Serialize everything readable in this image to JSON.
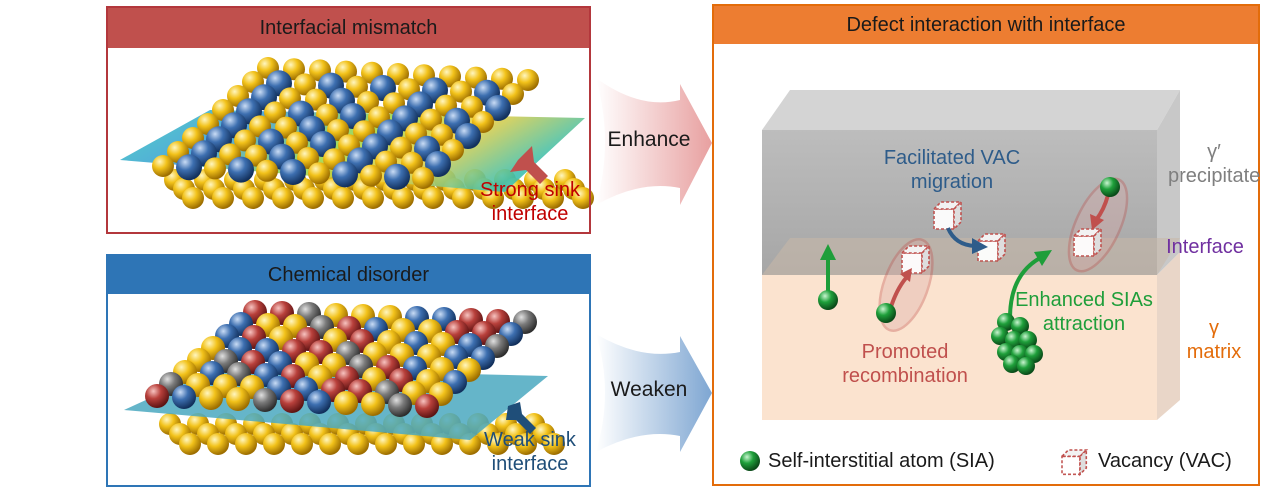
{
  "panels": {
    "mismatch": {
      "title": "Interfacial mismatch",
      "sink_label_line1": "Strong sink",
      "sink_label_line2": "interface"
    },
    "disorder": {
      "title": "Chemical disorder",
      "sink_label_line1": "Weak sink",
      "sink_label_line2": "interface"
    },
    "defect": {
      "title": "Defect interaction with interface",
      "vac_migration_line1": "Facilitated VAC",
      "vac_migration_line2": "migration",
      "precipitate_symbol": "γ′",
      "precipitate_label": "precipitate",
      "interface_label": "Interface",
      "matrix_symbol": "γ",
      "matrix_label": "matrix",
      "sia_attraction_line1": "Enhanced SIAs",
      "sia_attraction_line2": "attraction",
      "recombination_line1": "Promoted",
      "recombination_line2": "recombination",
      "legend_sia": "Self-interstitial atom (SIA)",
      "legend_vac": "Vacancy (VAC)"
    }
  },
  "arrows": {
    "enhance": "Enhance",
    "weaken": "Weaken"
  },
  "colors": {
    "red_title": "#c0504d",
    "blue_title": "#2e75b6",
    "orange_title": "#ed7d31",
    "strong_sink_text": "#c00000",
    "weak_sink_text": "#1f4e79",
    "vac_text": "#2e5c8a",
    "recomb_text": "#c0504d",
    "sia_text": "#1e9e3a",
    "matrix_text": "#e36c0a",
    "interface_text": "#7030a0",
    "precip_text": "#7f7f7f"
  }
}
